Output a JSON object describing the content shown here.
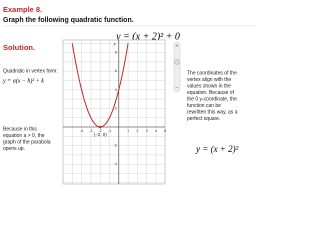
{
  "header": {
    "example": "Example 8.",
    "instruction": "Graph the following quadratic function."
  },
  "equation": "y = (x + 2)² + 0",
  "solution": "Solution.",
  "vertex_form": {
    "label": "Quadratic in vertex form:",
    "formula": "y = a(x − h)² + k"
  },
  "left_note": [
    "Because in this",
    "equation a > 0, the",
    "graph of the parabola",
    "opens up."
  ],
  "right_note": [
    "The coordinates of the",
    "vertex align with the",
    "values shown in the",
    "equation. Because of",
    "the 0 y-coordinate, the",
    "function can be",
    "rewritten this way, as a",
    "perfect square."
  ],
  "rewritten": "y = (x + 2)²",
  "graph": {
    "y_axis_label": "y",
    "x_tick_labels": [
      -4,
      -3,
      -2,
      -1,
      1,
      2,
      3,
      4,
      5
    ],
    "y_tick_labels": [
      8,
      6,
      4,
      2,
      -2,
      -4
    ],
    "vertex_label": "(−2, 0)"
  }
}
